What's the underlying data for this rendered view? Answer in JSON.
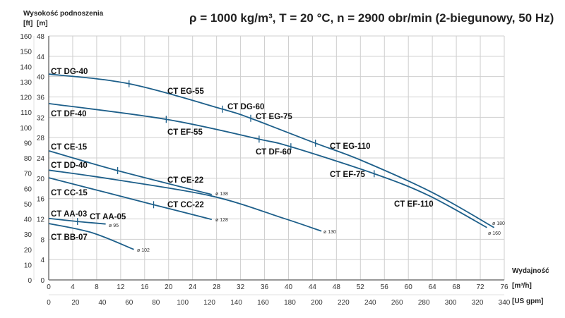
{
  "chart_data": {
    "type": "line",
    "title": "ρ = 1000 kg/m³, T = 20 °C, n = 2900 obr/min (2-biegunowy, 50 Hz)",
    "ylabel": "Wysokość podnoszenia",
    "ylabel_units": [
      "[ft]",
      "[m]"
    ],
    "xlabel": "Wydajność",
    "xlabel_units": [
      "[m³/h]",
      "[US gpm]"
    ],
    "xlim": [
      0,
      76
    ],
    "ylim": [
      0,
      48
    ],
    "x_ticks_m3h": [
      "0",
      "4",
      "8",
      "12",
      "16",
      "20",
      "24",
      "28",
      "32",
      "36",
      "40",
      "44",
      "48",
      "52",
      "56",
      "60",
      "64",
      "68",
      "72",
      "76"
    ],
    "x_ticks_gpm": [
      "0",
      "20",
      "40",
      "60",
      "80",
      "100",
      "120",
      "140",
      "160",
      "180",
      "200",
      "220",
      "240",
      "260",
      "280",
      "300",
      "320",
      "340"
    ],
    "y_ticks_m": [
      "0",
      "4",
      "8",
      "12",
      "16",
      "20",
      "24",
      "28",
      "32",
      "36",
      "40",
      "44",
      "48"
    ],
    "y_ticks_ft": [
      "0",
      "10",
      "20",
      "30",
      "40",
      "50",
      "60",
      "70",
      "80",
      "90",
      "100",
      "110",
      "120",
      "130",
      "140",
      "150",
      "160"
    ],
    "grid": true,
    "curve_color": "#1d5f8a",
    "series": [
      {
        "name": "ø 180",
        "models": [
          "CT DG-40",
          "CT EG-55",
          "CT DG-60",
          "CT EG-75",
          "CT EG-110"
        ],
        "x": [
          0,
          13.4,
          29,
          33.7,
          44.5,
          52,
          64,
          74.3
        ],
        "y": [
          40.5,
          38.6,
          33.6,
          31.8,
          26.9,
          23.6,
          17.2,
          10.3
        ],
        "model_breaks": [
          13.4,
          29,
          33.7,
          44.5
        ]
      },
      {
        "name": "ø 160",
        "models": [
          "CT DF-40",
          "CT EF-55",
          "CT DF-60",
          "CT EF-75",
          "CT EF-110"
        ],
        "x": [
          0,
          19.6,
          35.1,
          40.4,
          54.3,
          63.4,
          73.1
        ],
        "y": [
          34.7,
          31.6,
          27.7,
          26.2,
          20.9,
          16.6,
          10.3
        ],
        "model_breaks": [
          19.6,
          35.1,
          40.4,
          54.3
        ]
      },
      {
        "name": "ø 138",
        "models": [
          "CT CE-15",
          "CT CE-22"
        ],
        "x": [
          0,
          11.5,
          27.2
        ],
        "y": [
          25.4,
          21.5,
          16.8
        ],
        "model_breaks": [
          11.5
        ]
      },
      {
        "name": "ø 130",
        "models": [
          "CT DD-40"
        ],
        "x": [
          0,
          10.7,
          27.2,
          39,
          45.5
        ],
        "y": [
          21.6,
          19.8,
          16.5,
          12.2,
          9.6
        ],
        "model_breaks": []
      },
      {
        "name": "ø 128",
        "models": [
          "CT CC-15",
          "CT CC-22"
        ],
        "x": [
          0,
          17.5,
          27.2
        ],
        "y": [
          20.1,
          14.8,
          11.9
        ],
        "model_breaks": [
          17.5
        ]
      },
      {
        "name": "ø 95",
        "models": [
          "CT AA-03",
          "CT AA-05"
        ],
        "x": [
          0,
          4.8,
          9.5
        ],
        "y": [
          12.1,
          11.5,
          11.0
        ],
        "model_breaks": [
          4.8
        ]
      },
      {
        "name": "ø 102",
        "models": [
          "CT BB-07"
        ],
        "x": [
          0,
          7.2,
          14.2
        ],
        "y": [
          11.1,
          9.3,
          6.0
        ],
        "model_breaks": []
      }
    ]
  }
}
